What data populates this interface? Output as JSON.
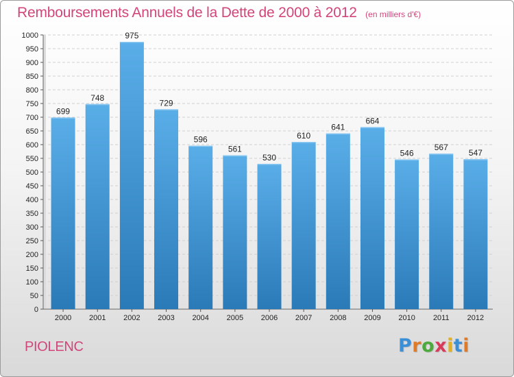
{
  "chart_data": {
    "type": "bar",
    "title": "Remboursements Annuels de la Dette de 2000 à 2012",
    "subtitle": "(en milliers d'€)",
    "categories": [
      "2000",
      "2001",
      "2002",
      "2003",
      "2004",
      "2005",
      "2006",
      "2007",
      "2008",
      "2009",
      "2010",
      "2011",
      "2012"
    ],
    "values": [
      699,
      748,
      975,
      729,
      596,
      561,
      530,
      610,
      641,
      664,
      546,
      567,
      547
    ],
    "ylim": [
      0,
      1000
    ],
    "ytick_step": 50,
    "grid": true,
    "legend": "none",
    "bar_color_top": "#5aaee8",
    "bar_color_bottom": "#2a7ab8"
  },
  "footer": {
    "city": "PIOLENC",
    "logo_letters": [
      "P",
      "r",
      "o",
      "x",
      "i",
      "t",
      "i"
    ],
    "logo_colors": [
      "#3b8fd6",
      "#e07a26",
      "#4caa3c",
      "#d93a5a",
      "#e0b02a",
      "#3b8fd6",
      "#e07a26"
    ]
  }
}
